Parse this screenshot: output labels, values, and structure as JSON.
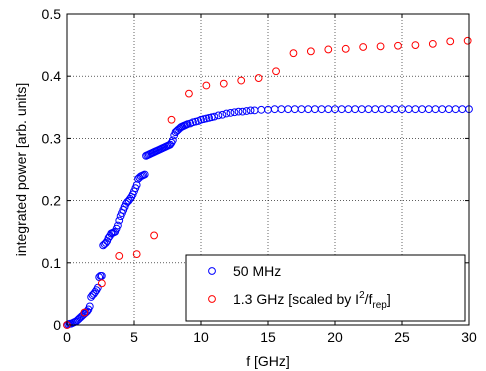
{
  "chart_data": {
    "type": "scatter",
    "title": "",
    "xlabel": "f [GHz]",
    "ylabel": "integrated power [arb. units]",
    "xlim": [
      0,
      30
    ],
    "ylim": [
      0,
      0.5
    ],
    "x_ticks": [
      0,
      5,
      10,
      15,
      20,
      25,
      30
    ],
    "x_tick_labels": [
      "0",
      "5",
      "10",
      "15",
      "20",
      "25",
      "30"
    ],
    "y_ticks": [
      0,
      0.1,
      0.2,
      0.3,
      0.4,
      0.5
    ],
    "y_tick_labels": [
      "0",
      "0.1",
      "0.2",
      "0.3",
      "0.4",
      "0.5"
    ],
    "grid": true,
    "grid_style": "dotted",
    "legend_position": "bottom-right",
    "series": [
      {
        "name": "50 MHz",
        "color": "#0000ff",
        "marker": "open-circle",
        "points": [
          [
            0.0,
            0.0
          ],
          [
            0.1,
            0.001
          ],
          [
            0.2,
            0.002
          ],
          [
            0.3,
            0.002
          ],
          [
            0.4,
            0.003
          ],
          [
            0.5,
            0.004
          ],
          [
            0.6,
            0.005
          ],
          [
            0.7,
            0.006
          ],
          [
            0.8,
            0.008
          ],
          [
            0.9,
            0.01
          ],
          [
            1.0,
            0.012
          ],
          [
            1.1,
            0.014
          ],
          [
            1.2,
            0.016
          ],
          [
            1.3,
            0.018
          ],
          [
            1.4,
            0.02
          ],
          [
            1.5,
            0.022
          ],
          [
            1.6,
            0.025
          ],
          [
            1.7,
            0.03
          ],
          [
            1.8,
            0.045
          ],
          [
            1.9,
            0.048
          ],
          [
            2.0,
            0.05
          ],
          [
            2.1,
            0.053
          ],
          [
            2.2,
            0.056
          ],
          [
            2.3,
            0.06
          ],
          [
            2.4,
            0.077
          ],
          [
            2.5,
            0.079
          ],
          [
            2.6,
            0.079
          ],
          [
            2.7,
            0.128
          ],
          [
            2.8,
            0.13
          ],
          [
            2.9,
            0.132
          ],
          [
            3.0,
            0.135
          ],
          [
            3.1,
            0.14
          ],
          [
            3.2,
            0.143
          ],
          [
            3.3,
            0.147
          ],
          [
            3.4,
            0.148
          ],
          [
            3.5,
            0.149
          ],
          [
            3.6,
            0.15
          ],
          [
            3.7,
            0.155
          ],
          [
            3.8,
            0.16
          ],
          [
            3.9,
            0.168
          ],
          [
            4.0,
            0.175
          ],
          [
            4.1,
            0.18
          ],
          [
            4.2,
            0.185
          ],
          [
            4.3,
            0.19
          ],
          [
            4.4,
            0.195
          ],
          [
            4.5,
            0.198
          ],
          [
            4.6,
            0.2
          ],
          [
            4.7,
            0.203
          ],
          [
            4.8,
            0.206
          ],
          [
            4.9,
            0.21
          ],
          [
            5.0,
            0.215
          ],
          [
            5.1,
            0.22
          ],
          [
            5.2,
            0.225
          ],
          [
            5.3,
            0.235
          ],
          [
            5.4,
            0.237
          ],
          [
            5.5,
            0.239
          ],
          [
            5.6,
            0.24
          ],
          [
            5.7,
            0.241
          ],
          [
            5.8,
            0.242
          ],
          [
            5.9,
            0.272
          ],
          [
            6.0,
            0.273
          ],
          [
            6.1,
            0.274
          ],
          [
            6.2,
            0.275
          ],
          [
            6.3,
            0.276
          ],
          [
            6.4,
            0.277
          ],
          [
            6.5,
            0.278
          ],
          [
            6.6,
            0.279
          ],
          [
            6.7,
            0.28
          ],
          [
            6.8,
            0.281
          ],
          [
            6.9,
            0.282
          ],
          [
            7.0,
            0.283
          ],
          [
            7.1,
            0.284
          ],
          [
            7.2,
            0.285
          ],
          [
            7.3,
            0.286
          ],
          [
            7.4,
            0.287
          ],
          [
            7.5,
            0.288
          ],
          [
            7.6,
            0.289
          ],
          [
            7.7,
            0.29
          ],
          [
            7.8,
            0.293
          ],
          [
            7.9,
            0.297
          ],
          [
            8.0,
            0.305
          ],
          [
            8.1,
            0.31
          ],
          [
            8.2,
            0.312
          ],
          [
            8.3,
            0.314
          ],
          [
            8.4,
            0.316
          ],
          [
            8.5,
            0.318
          ],
          [
            8.6,
            0.319
          ],
          [
            8.7,
            0.32
          ],
          [
            8.8,
            0.321
          ],
          [
            8.9,
            0.322
          ],
          [
            9.0,
            0.323
          ],
          [
            9.2,
            0.324
          ],
          [
            9.4,
            0.326
          ],
          [
            9.6,
            0.327
          ],
          [
            9.8,
            0.328
          ],
          [
            10.0,
            0.33
          ],
          [
            10.2,
            0.331
          ],
          [
            10.4,
            0.332
          ],
          [
            10.6,
            0.333
          ],
          [
            10.8,
            0.334
          ],
          [
            11.0,
            0.335
          ],
          [
            11.3,
            0.337
          ],
          [
            11.6,
            0.338
          ],
          [
            11.9,
            0.34
          ],
          [
            12.2,
            0.341
          ],
          [
            12.5,
            0.342
          ],
          [
            12.8,
            0.343
          ],
          [
            13.1,
            0.343
          ],
          [
            13.4,
            0.344
          ],
          [
            13.7,
            0.345
          ],
          [
            14.0,
            0.345
          ],
          [
            14.5,
            0.346
          ],
          [
            15.0,
            0.346
          ],
          [
            15.5,
            0.347
          ],
          [
            16.0,
            0.347
          ],
          [
            16.5,
            0.347
          ],
          [
            17.0,
            0.347
          ],
          [
            17.5,
            0.347
          ],
          [
            18.0,
            0.347
          ],
          [
            18.5,
            0.347
          ],
          [
            19.0,
            0.347
          ],
          [
            19.5,
            0.347
          ],
          [
            20.0,
            0.347
          ],
          [
            20.5,
            0.347
          ],
          [
            21.0,
            0.347
          ],
          [
            21.5,
            0.347
          ],
          [
            22.0,
            0.347
          ],
          [
            22.5,
            0.347
          ],
          [
            23.0,
            0.347
          ],
          [
            23.5,
            0.347
          ],
          [
            24.0,
            0.347
          ],
          [
            24.5,
            0.347
          ],
          [
            25.0,
            0.347
          ],
          [
            25.5,
            0.347
          ],
          [
            26.0,
            0.347
          ],
          [
            26.5,
            0.347
          ],
          [
            27.0,
            0.347
          ],
          [
            27.5,
            0.347
          ],
          [
            28.0,
            0.347
          ],
          [
            28.5,
            0.347
          ],
          [
            29.0,
            0.347
          ],
          [
            29.5,
            0.347
          ],
          [
            30.0,
            0.347
          ]
        ]
      },
      {
        "name": "1.3 GHz [scaled by I²/f_rep]",
        "color": "#ff0000",
        "marker": "open-circle",
        "points": [
          [
            0.0,
            0.0
          ],
          [
            1.3,
            0.02
          ],
          [
            2.6,
            0.067
          ],
          [
            3.9,
            0.111
          ],
          [
            5.2,
            0.114
          ],
          [
            6.5,
            0.144
          ],
          [
            7.8,
            0.33
          ],
          [
            9.1,
            0.372
          ],
          [
            10.4,
            0.385
          ],
          [
            11.7,
            0.388
          ],
          [
            13.0,
            0.393
          ],
          [
            14.3,
            0.397
          ],
          [
            15.6,
            0.408
          ],
          [
            16.9,
            0.437
          ],
          [
            18.2,
            0.44
          ],
          [
            19.5,
            0.443
          ],
          [
            20.8,
            0.444
          ],
          [
            22.1,
            0.447
          ],
          [
            23.4,
            0.448
          ],
          [
            24.7,
            0.449
          ],
          [
            26.0,
            0.45
          ],
          [
            27.3,
            0.452
          ],
          [
            28.6,
            0.456
          ],
          [
            29.9,
            0.457
          ]
        ]
      }
    ],
    "legend": {
      "entries": [
        {
          "label": "50 MHz",
          "color": "#0000ff"
        },
        {
          "label_main": "1.3 GHz [scaled by I",
          "label_sup": "2",
          "label_mid": "/f",
          "label_sub": "rep",
          "label_end": "]",
          "color": "#ff0000"
        }
      ]
    }
  }
}
